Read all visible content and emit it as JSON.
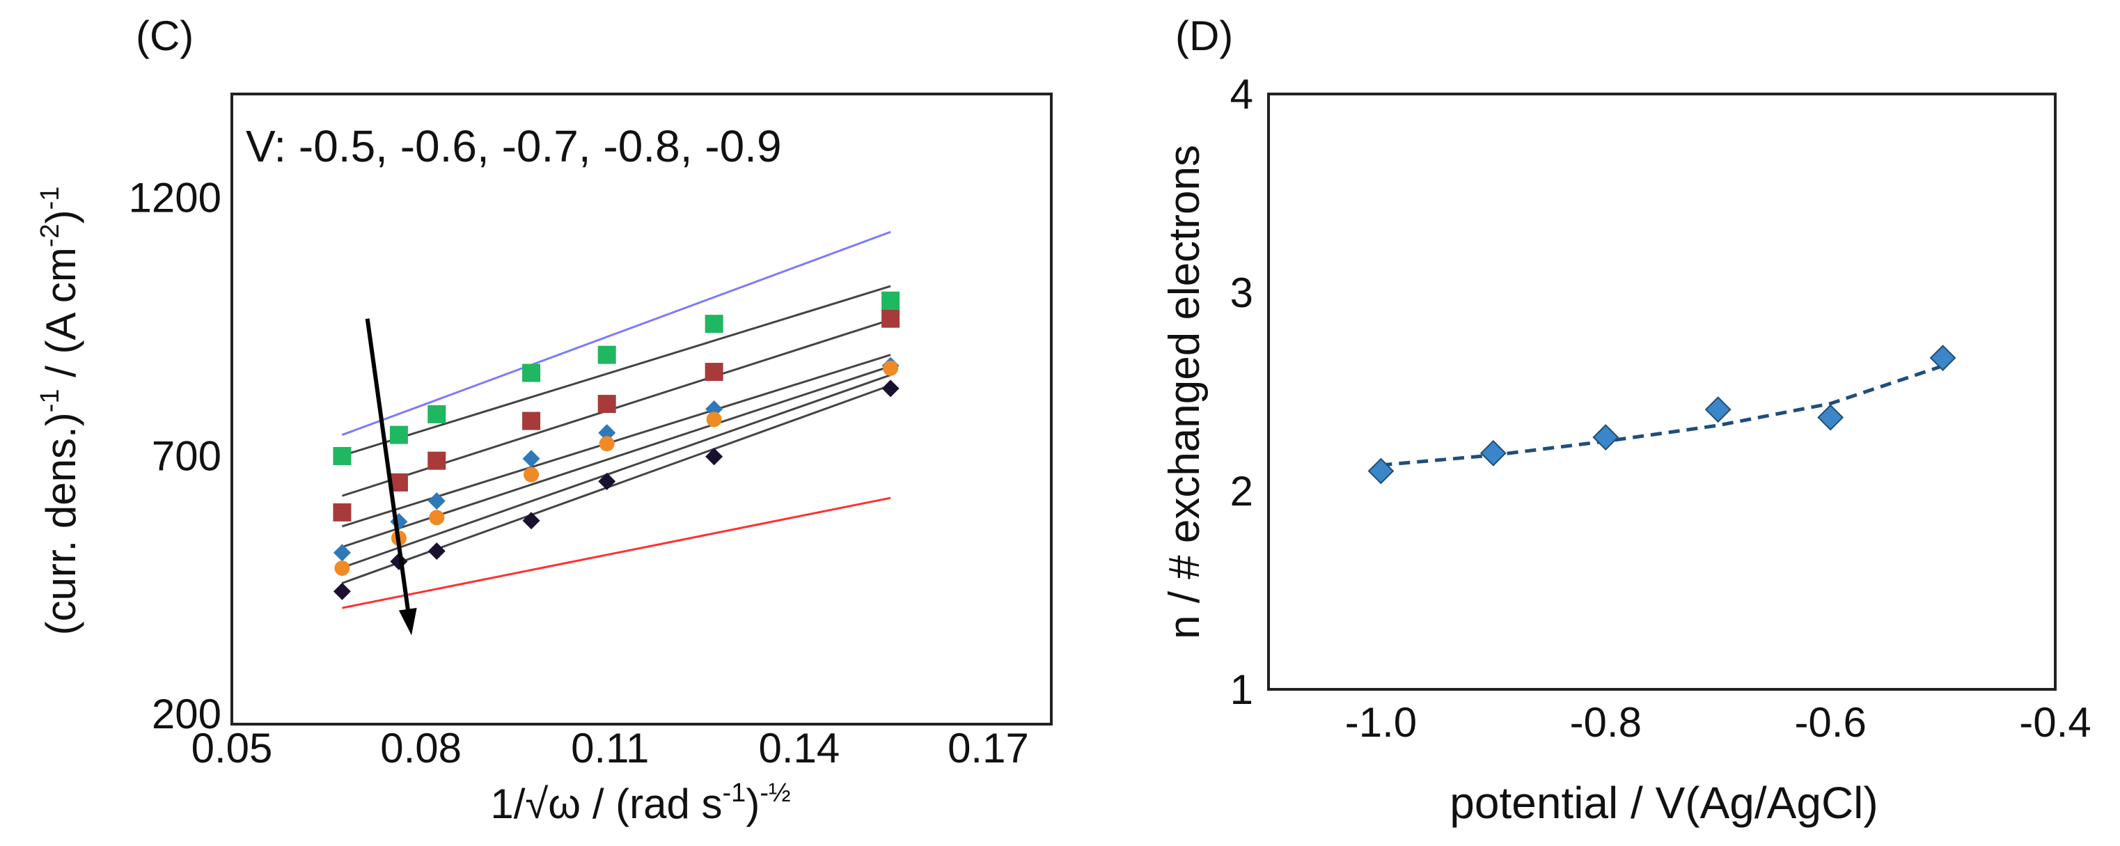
{
  "chart_data": [
    {
      "panel": "(C)",
      "type": "scatter",
      "title": "",
      "annotation": "V: -0.5, -0.6, -0.7, -0.8, -0.9",
      "xlabel": {
        "main": "1/√ω / (rad s",
        "sup1": "-1",
        "mid": ")",
        "sup2": "-½"
      },
      "ylabel": {
        "a": "(curr. dens.)",
        "s1": "-1",
        "b": " / (A cm",
        "s2": "-2",
        "c": ")",
        "s3": "-1"
      },
      "xlim": [
        0.05,
        0.18
      ],
      "ylim": [
        180,
        1400
      ],
      "xticks": [
        {
          "value": 0.05,
          "label": "0.05"
        },
        {
          "value": 0.08,
          "label": "0.08"
        },
        {
          "value": 0.11,
          "label": "0.11"
        },
        {
          "value": 0.14,
          "label": "0.14"
        },
        {
          "value": 0.17,
          "label": "0.17"
        }
      ],
      "yticks": [
        {
          "value": 200,
          "label": "200"
        },
        {
          "value": 700,
          "label": "700"
        },
        {
          "value": 1200,
          "label": "1200"
        }
      ],
      "x": [
        0.0675,
        0.0765,
        0.0825,
        0.0975,
        0.1095,
        0.1265,
        0.1545
      ],
      "series": [
        {
          "name": "-0.5",
          "marker": "square",
          "color": "#1fb760",
          "values": [
            699,
            740,
            780,
            860,
            895,
            955,
            1000
          ]
        },
        {
          "name": "-0.6",
          "marker": "square",
          "color": "#a83a3a",
          "values": [
            590,
            648,
            690,
            767,
            800,
            862,
            965
          ]
        },
        {
          "name": "-0.7",
          "marker": "diamond",
          "color": "#2f79b8",
          "values": [
            512,
            572,
            612,
            694,
            744,
            790,
            874
          ]
        },
        {
          "name": "-0.8",
          "marker": "circle",
          "color": "#f08a24",
          "values": [
            482,
            540,
            580,
            663,
            723,
            770,
            869
          ]
        },
        {
          "name": "-0.9",
          "marker": "diamond",
          "color": "#1a1030",
          "values": [
            437,
            495,
            515,
            574,
            650,
            698,
            830
          ]
        }
      ],
      "fit_lines": [
        {
          "name": "-0.5 fit",
          "color": "#444444",
          "x": [
            0.0675,
            0.1545
          ],
          "y": [
            700,
            1028
          ]
        },
        {
          "name": "-0.6 fit",
          "color": "#444444",
          "x": [
            0.0675,
            0.1545
          ],
          "y": [
            622,
            963
          ]
        },
        {
          "name": "-0.7 fit",
          "color": "#444444",
          "x": [
            0.0675,
            0.1545
          ],
          "y": [
            563,
            895
          ]
        },
        {
          "name": "-0.8 fit",
          "color": "#444444",
          "x": [
            0.0675,
            0.1545
          ],
          "y": [
            523,
            873
          ]
        },
        {
          "name": "-0.9 fit",
          "color": "#444444",
          "x": [
            0.0675,
            0.1545
          ],
          "y": [
            483,
            856
          ]
        },
        {
          "name": "-0.9 fit b",
          "color": "#444444",
          "x": [
            0.0675,
            0.1545
          ],
          "y": [
            453,
            836
          ]
        }
      ],
      "reference_lines": [
        {
          "name": "upper reference",
          "color": "#7a7aff",
          "x": [
            0.0675,
            0.1545
          ],
          "y": [
            740,
            1133
          ]
        },
        {
          "name": "lower reference",
          "color": "#ff3030",
          "x": [
            0.0675,
            0.1545
          ],
          "y": [
            405,
            618
          ]
        }
      ],
      "arrow": {
        "from": {
          "x": 0.0715,
          "y": 965
        },
        "to": {
          "x": 0.0785,
          "y": 352
        }
      },
      "grid": false
    },
    {
      "panel": "(D)",
      "type": "line",
      "title": "",
      "xlabel": "potential / V(Ag/AgCl)",
      "ylabel": "n / # exchanged electrons",
      "xlim": [
        -1.1,
        -0.4
      ],
      "ylim": [
        1,
        4
      ],
      "xticks": [
        {
          "value": -1.0,
          "label": "-1.0"
        },
        {
          "value": -0.8,
          "label": "-0.8"
        },
        {
          "value": -0.6,
          "label": "-0.6"
        },
        {
          "value": -0.4,
          "label": "-0.4"
        }
      ],
      "yticks": [
        {
          "value": 1,
          "label": "1"
        },
        {
          "value": 2,
          "label": "2"
        },
        {
          "value": 3,
          "label": "3"
        },
        {
          "value": 4,
          "label": "4"
        }
      ],
      "series": [
        {
          "name": "n",
          "marker": "diamond",
          "color": "#3a86c8",
          "x": [
            -1.0,
            -0.9,
            -0.8,
            -0.7,
            -0.6,
            -0.5
          ],
          "values": [
            2.1,
            2.19,
            2.27,
            2.41,
            2.37,
            2.67
          ]
        }
      ],
      "trend": {
        "style": "dashed",
        "color": "#1f4e79",
        "x": [
          -1.0,
          -0.9,
          -0.8,
          -0.7,
          -0.6,
          -0.5
        ],
        "values": [
          2.13,
          2.18,
          2.25,
          2.33,
          2.44,
          2.63
        ]
      },
      "grid": false
    }
  ]
}
